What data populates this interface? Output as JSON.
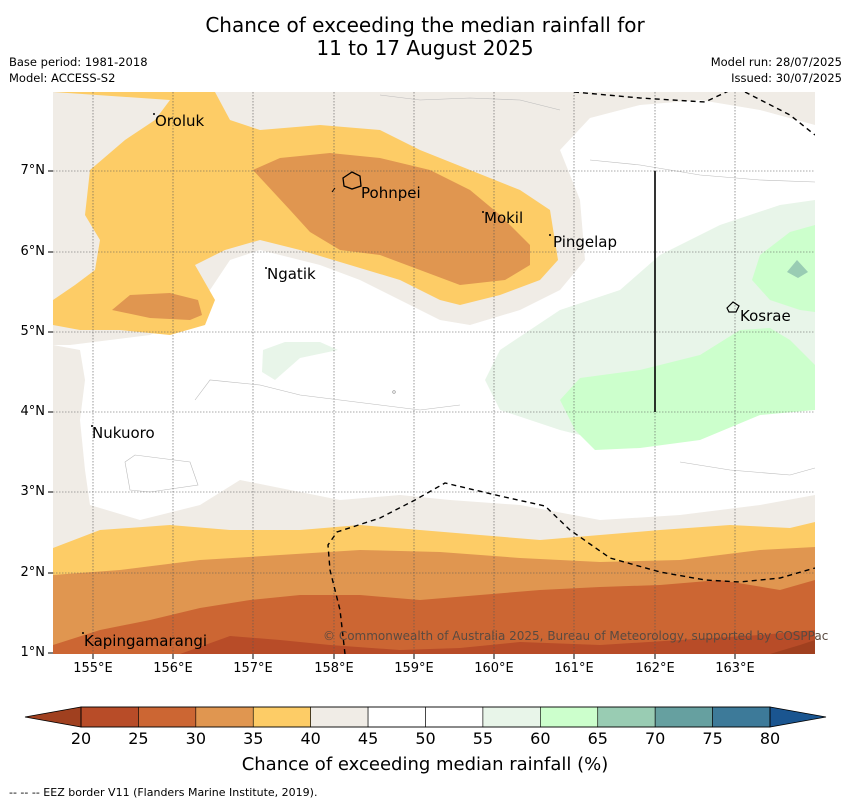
{
  "title": {
    "line1": "Chance of exceeding the median rainfall for",
    "line2": "11 to 17 August 2025"
  },
  "meta": {
    "base_period": "Base period: 1981-2018",
    "model": "Model: ACCESS-S2",
    "model_run": "Model run: 28/07/2025",
    "issued": "Issued: 30/07/2025"
  },
  "map": {
    "lat_labels": [
      "7°N",
      "6°N",
      "5°N",
      "4°N",
      "3°N",
      "2°N",
      "1°N"
    ],
    "lon_labels": [
      "155°E",
      "156°E",
      "157°E",
      "158°E",
      "159°E",
      "160°E",
      "161°E",
      "162°E",
      "163°E"
    ],
    "places": [
      {
        "name": "Oroluk"
      },
      {
        "name": "Pohnpei"
      },
      {
        "name": "Mokil"
      },
      {
        "name": "Pingelap"
      },
      {
        "name": "Ngatik"
      },
      {
        "name": "Kosrae"
      },
      {
        "name": "Nukuoro"
      },
      {
        "name": "Kapingamarangi"
      }
    ],
    "copyright": "© Commonwealth of Australia 2025, Bureau of Meteorology, supported by COSPPac"
  },
  "colorbar": {
    "ticks": [
      "20",
      "25",
      "30",
      "35",
      "40",
      "45",
      "50",
      "55",
      "60",
      "65",
      "70",
      "75",
      "80"
    ],
    "colors": [
      "#a0401f",
      "#b84c28",
      "#cc6633",
      "#e09650",
      "#fdcc66",
      "#f0ece6",
      "#ffffff",
      "#ffffff",
      "#e8f5e9",
      "#ccffcc",
      "#99ccb3",
      "#66a0a0",
      "#3d7a99",
      "#1a5590"
    ],
    "label": "Chance of exceeding median rainfall (%)"
  },
  "footnote": "--  --  -- EEZ border V11 (Flanders Marine Institute, 2019)."
}
